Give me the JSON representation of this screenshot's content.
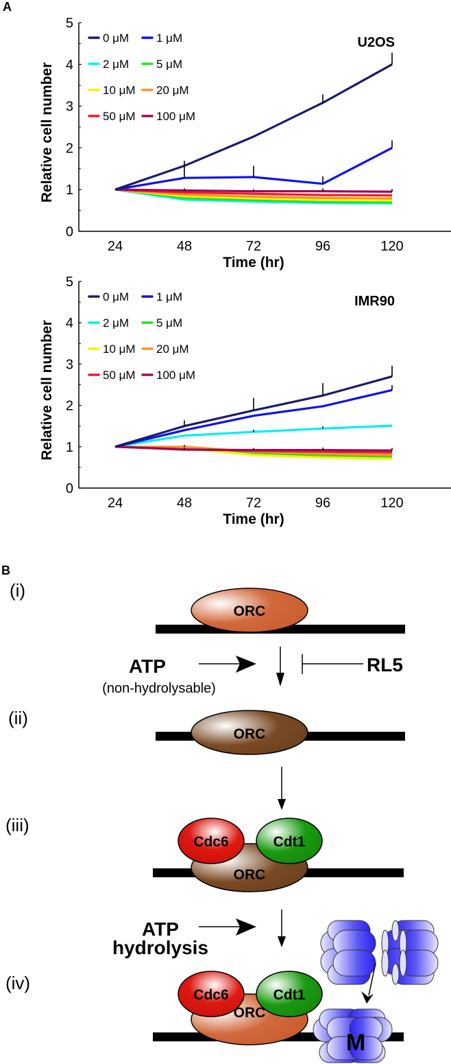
{
  "figure": {
    "panel_a_label": "A",
    "panel_b_label": "B"
  },
  "chart_data": [
    {
      "type": "line",
      "title": "U2OS",
      "xlabel": "Time (hr)",
      "ylabel": "Relative cell number",
      "x": [
        24,
        48,
        72,
        96,
        120
      ],
      "x_tick_labels": [
        "24",
        "48",
        "72",
        "96",
        "120"
      ],
      "y_tick_labels": [
        "0",
        "1",
        "2",
        "3",
        "4",
        "5"
      ],
      "ylim": [
        0,
        5
      ],
      "grid": false,
      "legend_position": "top-left",
      "series": [
        {
          "name": "0 μM",
          "color": "#1b1a6b",
          "values": [
            1.0,
            1.57,
            2.27,
            3.08,
            4.0
          ],
          "err": [
            0,
            0.12,
            0,
            0.2,
            0.28
          ]
        },
        {
          "name": "1 μM",
          "color": "#0a12f0",
          "values": [
            1.0,
            1.28,
            1.3,
            1.14,
            2.0
          ],
          "err": [
            0,
            0.35,
            0.27,
            0.18,
            0.18
          ]
        },
        {
          "name": "2 μM",
          "color": "#00f0f0",
          "values": [
            1.0,
            0.76,
            0.71,
            0.68,
            0.67
          ],
          "err": [
            0,
            0,
            0,
            0,
            0
          ]
        },
        {
          "name": "5 μM",
          "color": "#22e022",
          "values": [
            1.0,
            0.8,
            0.75,
            0.71,
            0.7
          ],
          "err": [
            0,
            0,
            0,
            0,
            0
          ]
        },
        {
          "name": "10 μM",
          "color": "#f5f500",
          "values": [
            1.0,
            0.84,
            0.79,
            0.75,
            0.74
          ],
          "err": [
            0,
            0,
            0,
            0,
            0
          ]
        },
        {
          "name": "20 μM",
          "color": "#f79428",
          "values": [
            1.0,
            0.88,
            0.83,
            0.8,
            0.79
          ],
          "err": [
            0,
            0,
            0,
            0,
            0
          ]
        },
        {
          "name": "50 μM",
          "color": "#ee1c24",
          "values": [
            1.0,
            0.93,
            0.9,
            0.87,
            0.86
          ],
          "err": [
            0,
            0,
            0,
            0,
            0
          ]
        },
        {
          "name": "100 μM",
          "color": "#9b0a5a",
          "values": [
            1.0,
            0.98,
            0.96,
            0.96,
            0.95
          ],
          "err": [
            0,
            0.05,
            0.05,
            0.07,
            0.06
          ]
        }
      ]
    },
    {
      "type": "line",
      "title": "IMR90",
      "xlabel": "Time (hr)",
      "ylabel": "Relative cell number",
      "x": [
        24,
        48,
        72,
        96,
        120
      ],
      "x_tick_labels": [
        "24",
        "48",
        "72",
        "96",
        "120"
      ],
      "y_tick_labels": [
        "0",
        "1",
        "2",
        "3",
        "4",
        "5"
      ],
      "ylim": [
        0,
        5
      ],
      "grid": false,
      "legend_position": "top-left",
      "series": [
        {
          "name": "0 μM",
          "color": "#1b1a6b",
          "values": [
            1.0,
            1.5,
            1.88,
            2.24,
            2.7
          ],
          "err": [
            0,
            0.14,
            0.3,
            0.3,
            0.26
          ]
        },
        {
          "name": "1 μM",
          "color": "#0a12f0",
          "values": [
            1.0,
            1.4,
            1.75,
            1.98,
            2.37
          ],
          "err": [
            0,
            0,
            0,
            0,
            0.12
          ]
        },
        {
          "name": "2 μM",
          "color": "#00f0f0",
          "values": [
            1.0,
            1.27,
            1.36,
            1.44,
            1.51
          ],
          "err": [
            0,
            0,
            0.05,
            0.05,
            0
          ]
        },
        {
          "name": "5 μM",
          "color": "#22e022",
          "values": [
            1.0,
            0.97,
            0.84,
            0.79,
            0.75
          ],
          "err": [
            0,
            0,
            0,
            0,
            0
          ]
        },
        {
          "name": "10 μM",
          "color": "#f5f500",
          "values": [
            1.0,
            0.97,
            0.8,
            0.74,
            0.71
          ],
          "err": [
            0,
            0,
            0,
            0,
            0
          ]
        },
        {
          "name": "20 μM",
          "color": "#f79428",
          "values": [
            1.0,
            1.0,
            0.88,
            0.83,
            0.8
          ],
          "err": [
            0,
            0.04,
            0,
            0,
            0
          ]
        },
        {
          "name": "50 μM",
          "color": "#ee1c24",
          "values": [
            1.0,
            0.94,
            0.9,
            0.88,
            0.86
          ],
          "err": [
            0,
            0,
            0,
            0,
            0
          ]
        },
        {
          "name": "100 μM",
          "color": "#9b0a5a",
          "values": [
            1.0,
            0.93,
            0.92,
            0.92,
            0.91
          ],
          "err": [
            0,
            0.05,
            0.05,
            0.06,
            0.06
          ]
        }
      ]
    }
  ],
  "diagram": {
    "steps": [
      "(i)",
      "(ii)",
      "(iii)",
      "(iv)"
    ],
    "orc_label": "ORC",
    "cdc6_label": "Cdc6",
    "cdt1_label": "Cdt1",
    "mcm_label": "M",
    "atp_label": "ATP",
    "atp_sub_label": "(non-hydrolysable)",
    "inhibitor_label": "RL5",
    "atp2_label": "ATP",
    "hydrolysis_label": "hydrolysis",
    "colors": {
      "orc_orange": "#d2693c",
      "orc_brown": "#7a4a24",
      "cdc6_red": "#dd1a12",
      "cdt1_green": "#1a9a10",
      "mcm_blue": "#2a22f0"
    }
  }
}
